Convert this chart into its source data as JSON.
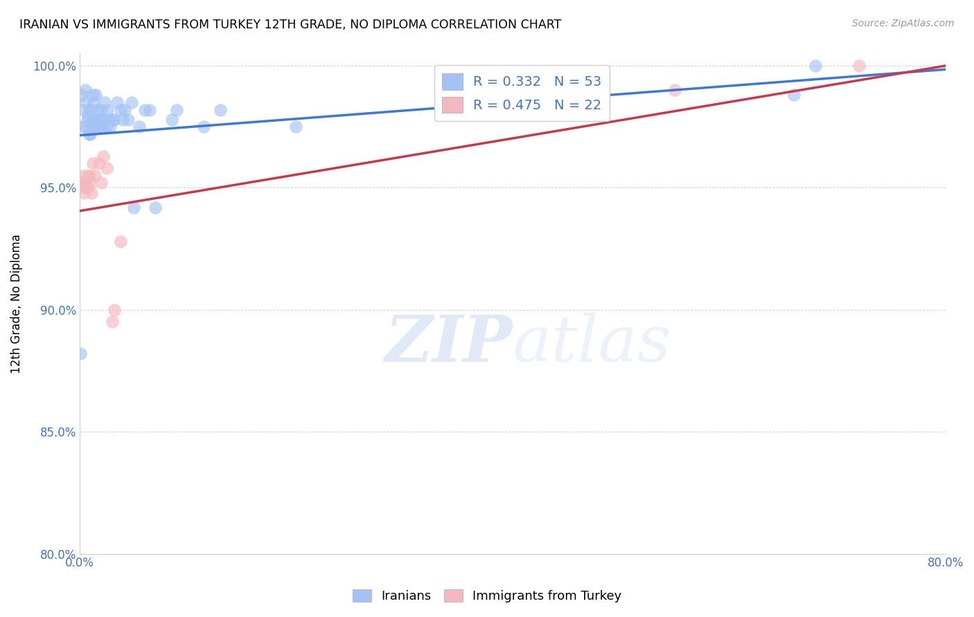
{
  "title": "IRANIAN VS IMMIGRANTS FROM TURKEY 12TH GRADE, NO DIPLOMA CORRELATION CHART",
  "source": "Source: ZipAtlas.com",
  "xlabel": "",
  "ylabel": "12th Grade, No Diploma",
  "xlim": [
    0.0,
    0.8
  ],
  "ylim": [
    0.8,
    1.005
  ],
  "xticks": [
    0.0,
    0.1,
    0.2,
    0.3,
    0.4,
    0.5,
    0.6,
    0.7,
    0.8
  ],
  "xticklabels": [
    "0.0%",
    "",
    "",
    "",
    "",
    "",
    "",
    "",
    "80.0%"
  ],
  "yticks": [
    0.8,
    0.85,
    0.9,
    0.95,
    1.0
  ],
  "yticklabels": [
    "80.0%",
    "85.0%",
    "90.0%",
    "95.0%",
    "100.0%"
  ],
  "blue_color": "#a4c2f4",
  "pink_color": "#f4b8c1",
  "blue_line_color": "#3c78d8",
  "pink_line_color": "#c9374a",
  "legend_R_blue": "R = 0.332",
  "legend_N_blue": "N = 53",
  "legend_R_pink": "R = 0.475",
  "legend_N_pink": "N = 22",
  "watermark_zip": "ZIP",
  "watermark_atlas": "atlas",
  "iranians_x": [
    0.001,
    0.002,
    0.003,
    0.004,
    0.005,
    0.006,
    0.006,
    0.007,
    0.008,
    0.009,
    0.01,
    0.01,
    0.011,
    0.012,
    0.012,
    0.013,
    0.013,
    0.014,
    0.015,
    0.015,
    0.016,
    0.017,
    0.018,
    0.019,
    0.02,
    0.02,
    0.021,
    0.022,
    0.023,
    0.025,
    0.026,
    0.027,
    0.028,
    0.03,
    0.032,
    0.035,
    0.038,
    0.04,
    0.042,
    0.045,
    0.048,
    0.05,
    0.055,
    0.06,
    0.065,
    0.07,
    0.085,
    0.09,
    0.115,
    0.13,
    0.2,
    0.66,
    0.68
  ],
  "iranians_y": [
    0.882,
    0.988,
    0.975,
    0.982,
    0.99,
    0.985,
    0.975,
    0.978,
    0.98,
    0.972,
    0.972,
    0.982,
    0.975,
    0.978,
    0.988,
    0.975,
    0.985,
    0.978,
    0.988,
    0.975,
    0.982,
    0.975,
    0.978,
    0.975,
    0.982,
    0.978,
    0.975,
    0.978,
    0.985,
    0.975,
    0.982,
    0.978,
    0.975,
    0.978,
    0.978,
    0.985,
    0.982,
    0.978,
    0.982,
    0.978,
    0.985,
    0.942,
    0.975,
    0.982,
    0.982,
    0.942,
    0.978,
    0.982,
    0.975,
    0.982,
    0.975,
    0.988,
    1.0
  ],
  "turkey_x": [
    0.001,
    0.002,
    0.003,
    0.004,
    0.005,
    0.006,
    0.007,
    0.008,
    0.009,
    0.01,
    0.011,
    0.012,
    0.014,
    0.018,
    0.02,
    0.022,
    0.025,
    0.03,
    0.032,
    0.038,
    0.55,
    0.72
  ],
  "turkey_y": [
    0.952,
    0.95,
    0.955,
    0.948,
    0.952,
    0.95,
    0.955,
    0.95,
    0.955,
    0.952,
    0.948,
    0.96,
    0.955,
    0.96,
    0.952,
    0.963,
    0.958,
    0.895,
    0.9,
    0.928,
    0.99,
    1.0
  ],
  "blue_trendline": [
    [
      0.0,
      0.8
    ],
    [
      0.9715,
      0.9985
    ]
  ],
  "pink_trendline": [
    [
      0.0,
      0.8
    ],
    [
      0.9405,
      1.0
    ]
  ]
}
